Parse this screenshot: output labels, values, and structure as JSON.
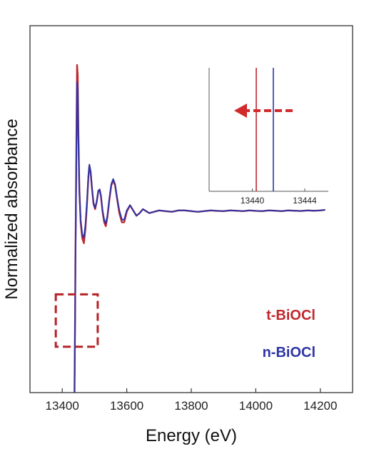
{
  "chart_data": [
    {
      "type": "line",
      "title": "",
      "xlabel": "Energy (eV)",
      "ylabel": "Normalized absorbance",
      "xlim": [
        13300,
        14300
      ],
      "ylim": [
        -0.9,
        1.9
      ],
      "xticks": [
        13400,
        13600,
        13800,
        14000,
        14200
      ],
      "yticks_shown": false,
      "grid": false,
      "legend_placement": "bottom-right",
      "series": [
        {
          "name": "t-BiOCl",
          "color": "#c0282d",
          "points": [
            [
              13438,
              -0.9
            ],
            [
              13439,
              -0.6
            ],
            [
              13440,
              -0.25
            ],
            [
              13441,
              0.15
            ],
            [
              13442,
              0.45
            ],
            [
              13444,
              1.05
            ],
            [
              13446,
              1.6
            ],
            [
              13448,
              1.52
            ],
            [
              13450,
              1.1
            ],
            [
              13453,
              0.65
            ],
            [
              13457,
              0.4
            ],
            [
              13462,
              0.28
            ],
            [
              13467,
              0.24
            ],
            [
              13472,
              0.35
            ],
            [
              13477,
              0.55
            ],
            [
              13481,
              0.74
            ],
            [
              13484,
              0.83
            ],
            [
              13488,
              0.78
            ],
            [
              13492,
              0.66
            ],
            [
              13497,
              0.54
            ],
            [
              13502,
              0.5
            ],
            [
              13507,
              0.56
            ],
            [
              13512,
              0.64
            ],
            [
              13516,
              0.65
            ],
            [
              13520,
              0.6
            ],
            [
              13525,
              0.48
            ],
            [
              13530,
              0.4
            ],
            [
              13535,
              0.37
            ],
            [
              13540,
              0.44
            ],
            [
              13546,
              0.57
            ],
            [
              13552,
              0.68
            ],
            [
              13558,
              0.72
            ],
            [
              13564,
              0.68
            ],
            [
              13570,
              0.58
            ],
            [
              13577,
              0.47
            ],
            [
              13585,
              0.4
            ],
            [
              13592,
              0.4
            ],
            [
              13600,
              0.48
            ],
            [
              13610,
              0.53
            ],
            [
              13620,
              0.49
            ],
            [
              13630,
              0.45
            ],
            [
              13640,
              0.47
            ],
            [
              13650,
              0.5
            ],
            [
              13660,
              0.485
            ],
            [
              13670,
              0.47
            ],
            [
              13685,
              0.48
            ],
            [
              13700,
              0.49
            ],
            [
              13720,
              0.485
            ],
            [
              13740,
              0.48
            ],
            [
              13760,
              0.49
            ],
            [
              13780,
              0.49
            ],
            [
              13800,
              0.485
            ],
            [
              13820,
              0.48
            ],
            [
              13840,
              0.485
            ],
            [
              13860,
              0.49
            ],
            [
              13880,
              0.487
            ],
            [
              13900,
              0.485
            ],
            [
              13920,
              0.49
            ],
            [
              13940,
              0.488
            ],
            [
              13960,
              0.485
            ],
            [
              13980,
              0.49
            ],
            [
              14000,
              0.487
            ],
            [
              14020,
              0.485
            ],
            [
              14040,
              0.49
            ],
            [
              14060,
              0.488
            ],
            [
              14080,
              0.485
            ],
            [
              14100,
              0.49
            ],
            [
              14120,
              0.488
            ],
            [
              14140,
              0.486
            ],
            [
              14160,
              0.49
            ],
            [
              14180,
              0.488
            ],
            [
              14200,
              0.49
            ],
            [
              14215,
              0.495
            ]
          ]
        },
        {
          "name": "n-BiOCl",
          "color": "#2e34a6",
          "points": [
            [
              13438,
              -0.9
            ],
            [
              13439,
              -0.62
            ],
            [
              13440,
              -0.3
            ],
            [
              13441,
              0.08
            ],
            [
              13442,
              0.38
            ],
            [
              13444,
              0.95
            ],
            [
              13446,
              1.47
            ],
            [
              13448,
              1.42
            ],
            [
              13450,
              1.05
            ],
            [
              13453,
              0.63
            ],
            [
              13457,
              0.42
            ],
            [
              13462,
              0.31
            ],
            [
              13467,
              0.28
            ],
            [
              13472,
              0.38
            ],
            [
              13477,
              0.57
            ],
            [
              13481,
              0.75
            ],
            [
              13484,
              0.84
            ],
            [
              13488,
              0.79
            ],
            [
              13492,
              0.67
            ],
            [
              13497,
              0.55
            ],
            [
              13502,
              0.51
            ],
            [
              13507,
              0.56
            ],
            [
              13512,
              0.64
            ],
            [
              13516,
              0.65
            ],
            [
              13520,
              0.6
            ],
            [
              13525,
              0.49
            ],
            [
              13530,
              0.42
            ],
            [
              13535,
              0.39
            ],
            [
              13540,
              0.45
            ],
            [
              13546,
              0.58
            ],
            [
              13552,
              0.69
            ],
            [
              13558,
              0.73
            ],
            [
              13564,
              0.69
            ],
            [
              13570,
              0.59
            ],
            [
              13577,
              0.49
            ],
            [
              13585,
              0.42
            ],
            [
              13592,
              0.42
            ],
            [
              13600,
              0.49
            ],
            [
              13610,
              0.53
            ],
            [
              13620,
              0.49
            ],
            [
              13630,
              0.45
            ],
            [
              13640,
              0.47
            ],
            [
              13650,
              0.5
            ],
            [
              13660,
              0.485
            ],
            [
              13670,
              0.47
            ],
            [
              13685,
              0.48
            ],
            [
              13700,
              0.49
            ],
            [
              13720,
              0.485
            ],
            [
              13740,
              0.48
            ],
            [
              13760,
              0.49
            ],
            [
              13780,
              0.49
            ],
            [
              13800,
              0.485
            ],
            [
              13820,
              0.48
            ],
            [
              13840,
              0.485
            ],
            [
              13860,
              0.49
            ],
            [
              13880,
              0.487
            ],
            [
              13900,
              0.485
            ],
            [
              13920,
              0.49
            ],
            [
              13940,
              0.488
            ],
            [
              13960,
              0.485
            ],
            [
              13980,
              0.49
            ],
            [
              14000,
              0.487
            ],
            [
              14020,
              0.485
            ],
            [
              14040,
              0.49
            ],
            [
              14060,
              0.488
            ],
            [
              14080,
              0.485
            ],
            [
              14100,
              0.49
            ],
            [
              14120,
              0.488
            ],
            [
              14140,
              0.486
            ],
            [
              14160,
              0.49
            ],
            [
              14180,
              0.488
            ],
            [
              14200,
              0.49
            ],
            [
              14215,
              0.495
            ]
          ]
        }
      ],
      "highlight_box": {
        "x_range": [
          13380,
          13510
        ],
        "y_range": [
          -0.55,
          -0.15
        ],
        "color": "#b52228",
        "style": "dashed"
      }
    },
    {
      "type": "line",
      "role": "inset",
      "xlim": [
        13436.7,
        13445.8
      ],
      "xticks": [
        13440,
        13444
      ],
      "yticks_shown": false,
      "series": [
        {
          "ref": "t-BiOCl",
          "color": "#c0282d",
          "edge_position": 13440.3
        },
        {
          "ref": "n-BiOCl",
          "color": "#2e34a6",
          "edge_position": 13441.6
        }
      ],
      "arrow": {
        "direction": "left",
        "color": "#d22a2a",
        "style": "dashed"
      }
    }
  ],
  "legend": {
    "items": [
      {
        "label": "t-BiOCl",
        "color": "#c0282d"
      },
      {
        "label": "n-BiOCl",
        "color": "#2e34a6"
      }
    ]
  }
}
